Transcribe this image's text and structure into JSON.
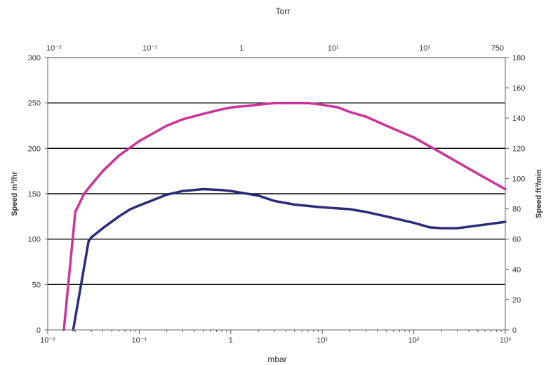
{
  "chart_data": {
    "type": "line",
    "top_axis_title": "Torr",
    "top_ticks": [
      {
        "x": 0.01316,
        "label": "10⁻²"
      },
      {
        "x": 0.1316,
        "label": "10⁻¹"
      },
      {
        "x": 1.316,
        "label": "1"
      },
      {
        "x": 13.16,
        "label": "10¹"
      },
      {
        "x": 131.6,
        "label": "10²"
      },
      {
        "x": 1000,
        "label": "750"
      }
    ],
    "xlabel": "mbar",
    "xscale": "log",
    "xlim": [
      0.01,
      1000
    ],
    "x_ticks": [
      {
        "x": 0.01,
        "label": "10⁻²"
      },
      {
        "x": 0.1,
        "label": "10⁻¹"
      },
      {
        "x": 1,
        "label": "1"
      },
      {
        "x": 10,
        "label": "10¹"
      },
      {
        "x": 100,
        "label": "10²"
      },
      {
        "x": 1000,
        "label": "10³"
      }
    ],
    "ylabel_left": "Speed m³/hr",
    "ylim_left": [
      0,
      300
    ],
    "yticks_left": [
      0,
      50,
      100,
      150,
      200,
      250,
      300
    ],
    "ylabel_right": "Speed ft³/min",
    "ylim_right": [
      0,
      180
    ],
    "yticks_right": [
      0,
      20,
      40,
      60,
      80,
      100,
      120,
      140,
      160,
      180
    ],
    "grid": "horizontal",
    "series": [
      {
        "color": "#cc3399",
        "points": [
          [
            0.015,
            0
          ],
          [
            0.02,
            130
          ],
          [
            0.025,
            150
          ],
          [
            0.03,
            160
          ],
          [
            0.04,
            175
          ],
          [
            0.06,
            192
          ],
          [
            0.1,
            208
          ],
          [
            0.15,
            218
          ],
          [
            0.2,
            225
          ],
          [
            0.3,
            232
          ],
          [
            0.5,
            238
          ],
          [
            0.8,
            243
          ],
          [
            1,
            245
          ],
          [
            2,
            248
          ],
          [
            3,
            250
          ],
          [
            5,
            250
          ],
          [
            7,
            250
          ],
          [
            10,
            248
          ],
          [
            15,
            245
          ],
          [
            20,
            240
          ],
          [
            30,
            235
          ],
          [
            50,
            225
          ],
          [
            100,
            212
          ],
          [
            200,
            195
          ],
          [
            500,
            172
          ],
          [
            1000,
            155
          ]
        ]
      },
      {
        "color": "#2b2b7a",
        "points": [
          [
            0.019,
            0
          ],
          [
            0.028,
            98
          ],
          [
            0.03,
            102
          ],
          [
            0.04,
            112
          ],
          [
            0.06,
            125
          ],
          [
            0.08,
            133
          ],
          [
            0.1,
            137
          ],
          [
            0.15,
            144
          ],
          [
            0.2,
            149
          ],
          [
            0.3,
            153
          ],
          [
            0.5,
            155
          ],
          [
            0.8,
            154
          ],
          [
            1,
            153
          ],
          [
            2,
            148
          ],
          [
            3,
            142
          ],
          [
            5,
            138
          ],
          [
            10,
            135
          ],
          [
            20,
            133
          ],
          [
            30,
            130
          ],
          [
            50,
            125
          ],
          [
            100,
            118
          ],
          [
            150,
            113
          ],
          [
            200,
            112
          ],
          [
            300,
            112
          ],
          [
            500,
            115
          ],
          [
            1000,
            119
          ]
        ]
      }
    ]
  }
}
